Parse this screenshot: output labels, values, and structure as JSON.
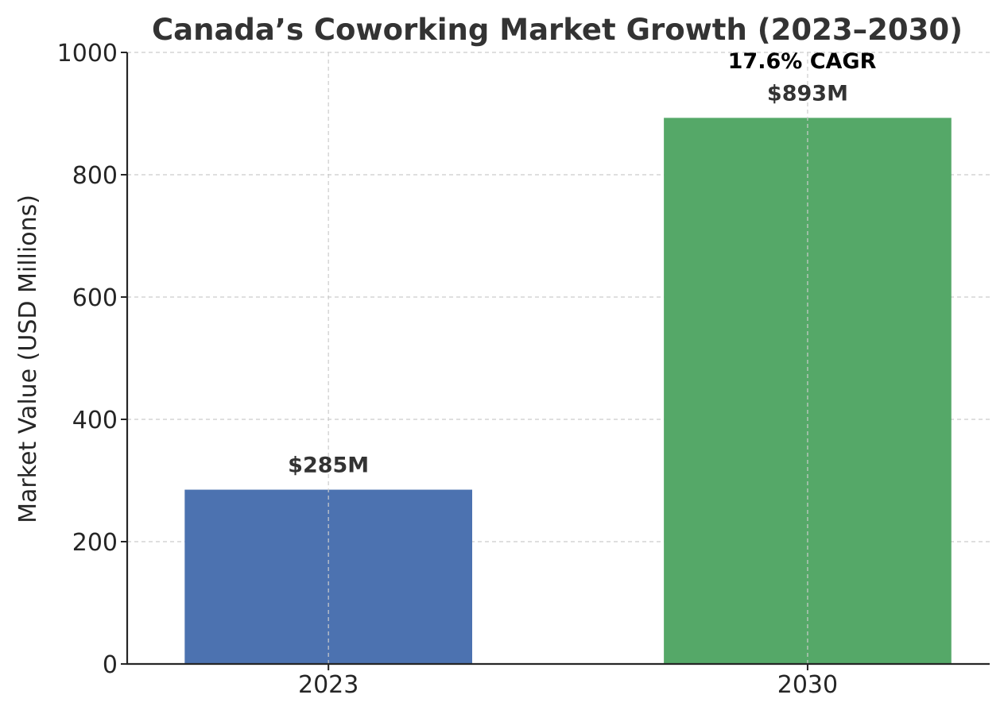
{
  "chart_data": {
    "type": "bar",
    "title": "Canada’s Coworking Market Growth (2023–2030)",
    "xlabel": "",
    "ylabel": "Market Value (USD Millions)",
    "categories": [
      "2023",
      "2030"
    ],
    "values": [
      285,
      893
    ],
    "value_labels": [
      "$285M",
      "$893M"
    ],
    "bar_colors": [
      "#4c72b0",
      "#55a868"
    ],
    "annotation": "17.6% CAGR",
    "ylim": [
      0,
      1000
    ],
    "yticks": [
      0,
      200,
      400,
      600,
      800,
      1000
    ],
    "grid": true
  }
}
